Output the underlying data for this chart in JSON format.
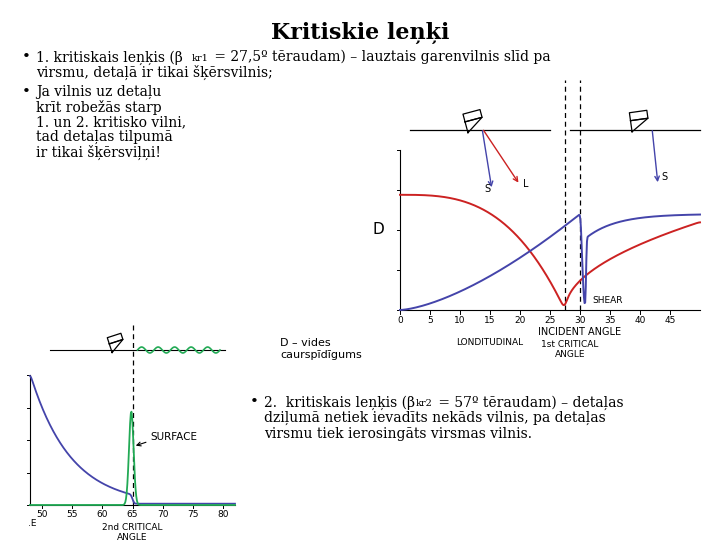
{
  "title": "Kritiskie leņķi",
  "background_color": "#ffffff",
  "text_color": "#000000",
  "bullet1_main": "1. kritiskais leņķis (β",
  "bullet1_sub": "kr1",
  "bullet1_rest": " = 27,5º tēraudam) – lauztais garenvilnis slīd pa",
  "bullet1_line2": "virsmu, detaļā ir tikai šķērsvilnis;",
  "bullet2_lines": [
    "Ja vilnis uz detaļu",
    "krīt robežās starp",
    "1. un 2. kritisko vilni,",
    "tad detaļas tilpumā",
    "ir tikai šķērsviļņi!"
  ],
  "label_D": "D",
  "label_D_desc_1": "D – vides",
  "label_D_desc_2": "caurspīdīgums",
  "label_LONGITUDINAL": "LONDITUDINAL",
  "label_SHEAR": "SHEAR",
  "label_incident": "INCIDENT ANGLE",
  "label_1st_critical_1": "1st CRITICAL",
  "label_1st_critical_2": "ANGLE",
  "label_2nd_critical_1": "2nd CRITICAL",
  "label_2nd_critical_2": "ANGLE",
  "label_SURFACE": "SURFACE",
  "label_L": "L",
  "label_S": "S",
  "label_E": ".E",
  "bullet3_main": "2.  kritiskais leņķis (β",
  "bullet3_sub": "kr2",
  "bullet3_rest": " = 57º tēraudam) – detaļas",
  "bullet3_line2": "dziļumā netiek ievadīts nekāds vilnis, pa detaļas",
  "bullet3_line3": "virsmu tiek ierosingāts virsmas vilnis."
}
